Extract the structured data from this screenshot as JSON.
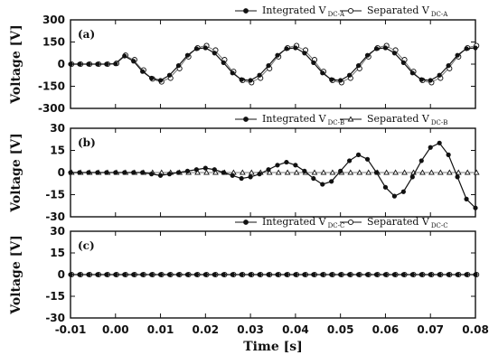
{
  "chart_data": [
    {
      "type": "line",
      "panel_label": "(a)",
      "ylabel": "Voltage [V]",
      "ylim": [
        -300,
        300
      ],
      "yticks": [
        "300",
        "150",
        "0",
        "-150",
        "-300"
      ],
      "legend": [
        {
          "label": "Integrated V",
          "sub": "DC-A",
          "marker": "filled-circle"
        },
        {
          "label": "Separated V",
          "sub": "DC-A",
          "marker": "open-circle"
        }
      ],
      "series": [
        {
          "name": "Integrated V DC-A",
          "x": [
            -0.01,
            -0.008,
            -0.006,
            -0.004,
            -0.002,
            0.0,
            0.002,
            0.004,
            0.006,
            0.008,
            0.01,
            0.012,
            0.014,
            0.016,
            0.018,
            0.02,
            0.022,
            0.024,
            0.026,
            0.028,
            0.03,
            0.032,
            0.034,
            0.036,
            0.038,
            0.04,
            0.042,
            0.044,
            0.046,
            0.048,
            0.05,
            0.052,
            0.054,
            0.056,
            0.058,
            0.06,
            0.062,
            0.064,
            0.066,
            0.068,
            0.07,
            0.072,
            0.074,
            0.076,
            0.078,
            0.08
          ],
          "y": [
            0,
            0,
            0,
            0,
            0,
            2,
            55,
            20,
            -50,
            -95,
            -110,
            -75,
            -10,
            60,
            105,
            110,
            75,
            10,
            -60,
            -105,
            -110,
            -75,
            -10,
            60,
            105,
            110,
            75,
            10,
            -60,
            -105,
            -110,
            -75,
            -10,
            60,
            105,
            110,
            75,
            10,
            -60,
            -105,
            -110,
            -75,
            -10,
            60,
            105,
            110
          ]
        },
        {
          "name": "Separated V DC-A",
          "x": [
            -0.01,
            -0.008,
            -0.006,
            -0.004,
            -0.002,
            0.0,
            0.002,
            0.004,
            0.006,
            0.008,
            0.01,
            0.012,
            0.014,
            0.016,
            0.018,
            0.02,
            0.022,
            0.024,
            0.026,
            0.028,
            0.03,
            0.032,
            0.034,
            0.036,
            0.038,
            0.04,
            0.042,
            0.044,
            0.046,
            0.048,
            0.05,
            0.052,
            0.054,
            0.056,
            0.058,
            0.06,
            0.062,
            0.064,
            0.066,
            0.068,
            0.07,
            0.072,
            0.074,
            0.076,
            0.078,
            0.08
          ],
          "y": [
            0,
            0,
            0,
            0,
            0,
            5,
            60,
            30,
            -40,
            -100,
            -120,
            -95,
            -30,
            50,
            110,
            125,
            95,
            30,
            -50,
            -110,
            -125,
            -95,
            -30,
            50,
            110,
            125,
            95,
            30,
            -50,
            -110,
            -125,
            -95,
            -30,
            50,
            110,
            125,
            95,
            30,
            -50,
            -110,
            -125,
            -95,
            -30,
            50,
            110,
            125
          ]
        }
      ]
    },
    {
      "type": "line",
      "panel_label": "(b)",
      "ylabel": "Voltage [V]",
      "ylim": [
        -30,
        30
      ],
      "yticks": [
        "30",
        "15",
        "0",
        "-15",
        "-30"
      ],
      "legend": [
        {
          "label": "Integrated V",
          "sub": "DC-B",
          "marker": "filled-circle"
        },
        {
          "label": "Separated V",
          "sub": "DC-B",
          "marker": "open-triangle"
        }
      ],
      "series": [
        {
          "name": "Integrated V DC-B",
          "x": [
            -0.01,
            -0.008,
            -0.006,
            -0.004,
            -0.002,
            0.0,
            0.002,
            0.004,
            0.006,
            0.008,
            0.01,
            0.012,
            0.014,
            0.016,
            0.018,
            0.02,
            0.022,
            0.024,
            0.026,
            0.028,
            0.03,
            0.032,
            0.034,
            0.036,
            0.038,
            0.04,
            0.042,
            0.044,
            0.046,
            0.048,
            0.05,
            0.052,
            0.054,
            0.056,
            0.058,
            0.06,
            0.062,
            0.064,
            0.066,
            0.068,
            0.07,
            0.072,
            0.074,
            0.076,
            0.078,
            0.08
          ],
          "y": [
            0,
            0,
            0,
            0,
            0,
            0,
            0,
            0,
            0,
            -1,
            -2,
            -1,
            0,
            1,
            2,
            3,
            2,
            0,
            -2,
            -4,
            -3,
            -1,
            2,
            5,
            7,
            5,
            1,
            -4,
            -8,
            -6,
            1,
            8,
            12,
            9,
            0,
            -10,
            -16,
            -13,
            -3,
            8,
            17,
            20,
            12,
            -3,
            -18,
            -24
          ]
        },
        {
          "name": "Separated V DC-B",
          "x": [
            -0.01,
            -0.008,
            -0.006,
            -0.004,
            -0.002,
            0.0,
            0.002,
            0.004,
            0.006,
            0.008,
            0.01,
            0.012,
            0.014,
            0.016,
            0.018,
            0.02,
            0.022,
            0.024,
            0.026,
            0.028,
            0.03,
            0.032,
            0.034,
            0.036,
            0.038,
            0.04,
            0.042,
            0.044,
            0.046,
            0.048,
            0.05,
            0.052,
            0.054,
            0.056,
            0.058,
            0.06,
            0.062,
            0.064,
            0.066,
            0.068,
            0.07,
            0.072,
            0.074,
            0.076,
            0.078,
            0.08
          ],
          "y": [
            0,
            0,
            0,
            0,
            0,
            0,
            0,
            0,
            0,
            0,
            0,
            0,
            0,
            0,
            0,
            0,
            0,
            0,
            0,
            0,
            0,
            0,
            0,
            0,
            0,
            0,
            0,
            0,
            0,
            0,
            0,
            0,
            0,
            0,
            0,
            0,
            0,
            0,
            0,
            0,
            0,
            0,
            0,
            0,
            0,
            0
          ]
        }
      ]
    },
    {
      "type": "line",
      "panel_label": "(c)",
      "ylabel": "Voltage [V]",
      "xlabel": "Time [s]",
      "xlim": [
        -0.01,
        0.08
      ],
      "xticks": [
        "-0.01",
        "0.00",
        "0.01",
        "0.02",
        "0.03",
        "0.04",
        "0.05",
        "0.06",
        "0.07",
        "0.08"
      ],
      "ylim": [
        -30,
        30
      ],
      "yticks": [
        "30",
        "15",
        "0",
        "-15",
        "-30"
      ],
      "legend": [
        {
          "label": "Integrated V",
          "sub": "DC-C",
          "marker": "filled-circle"
        },
        {
          "label": "Separated V",
          "sub": "DC-C",
          "marker": "open-circle"
        }
      ],
      "series": [
        {
          "name": "Integrated V DC-C",
          "x": [
            -0.01,
            -0.008,
            -0.006,
            -0.004,
            -0.002,
            0.0,
            0.002,
            0.004,
            0.006,
            0.008,
            0.01,
            0.012,
            0.014,
            0.016,
            0.018,
            0.02,
            0.022,
            0.024,
            0.026,
            0.028,
            0.03,
            0.032,
            0.034,
            0.036,
            0.038,
            0.04,
            0.042,
            0.044,
            0.046,
            0.048,
            0.05,
            0.052,
            0.054,
            0.056,
            0.058,
            0.06,
            0.062,
            0.064,
            0.066,
            0.068,
            0.07,
            0.072,
            0.074,
            0.076,
            0.078,
            0.08
          ],
          "y": [
            0,
            0,
            0,
            0,
            0,
            0,
            0,
            0,
            0,
            0,
            0,
            0,
            0,
            0,
            0,
            0,
            0,
            0,
            0,
            0,
            0,
            0,
            0,
            0,
            0,
            0,
            0,
            0,
            0,
            0,
            0,
            0,
            0,
            0,
            0,
            0,
            0,
            0,
            0,
            0,
            0,
            0,
            0,
            0,
            0,
            0
          ]
        },
        {
          "name": "Separated V DC-C",
          "x": [
            -0.01,
            -0.008,
            -0.006,
            -0.004,
            -0.002,
            0.0,
            0.002,
            0.004,
            0.006,
            0.008,
            0.01,
            0.012,
            0.014,
            0.016,
            0.018,
            0.02,
            0.022,
            0.024,
            0.026,
            0.028,
            0.03,
            0.032,
            0.034,
            0.036,
            0.038,
            0.04,
            0.042,
            0.044,
            0.046,
            0.048,
            0.05,
            0.052,
            0.054,
            0.056,
            0.058,
            0.06,
            0.062,
            0.064,
            0.066,
            0.068,
            0.07,
            0.072,
            0.074,
            0.076,
            0.078,
            0.08
          ],
          "y": [
            0,
            0,
            0,
            0,
            0,
            0,
            0,
            0,
            0,
            0,
            0,
            0,
            0,
            0,
            0,
            0,
            0,
            0,
            0,
            0,
            0,
            0,
            0,
            0,
            0,
            0,
            0,
            0,
            0,
            0,
            0,
            0,
            0,
            0,
            0,
            0,
            0,
            0,
            0,
            0,
            0,
            0,
            0,
            0,
            0,
            0
          ]
        }
      ]
    }
  ]
}
